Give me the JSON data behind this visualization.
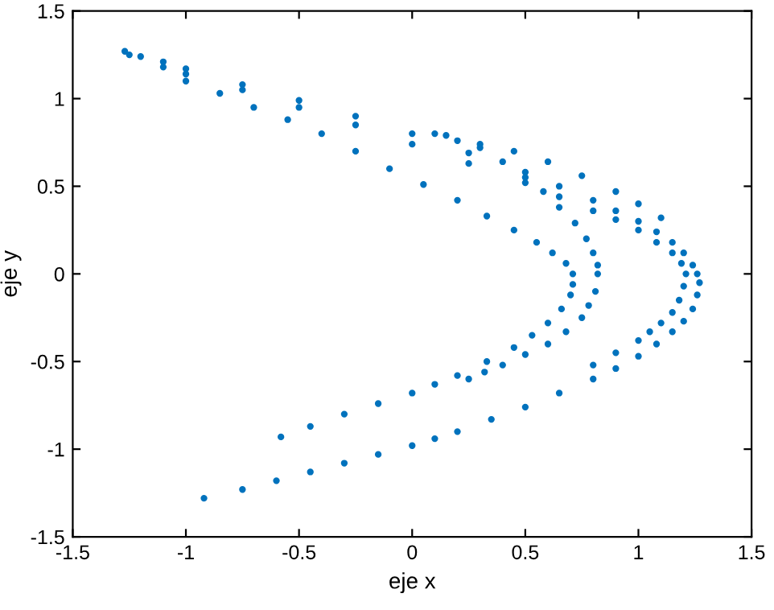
{
  "chart_data": {
    "type": "scatter",
    "xlabel": "eje x",
    "ylabel": "eje y",
    "marker": "circle",
    "grid": false,
    "xlim": [
      -1.5,
      1.5
    ],
    "ylim": [
      -1.5,
      1.5
    ],
    "xticks": [
      -1.5,
      -1,
      -0.5,
      0,
      0.5,
      1,
      1.5
    ],
    "yticks": [
      -1.5,
      -1,
      -0.5,
      0,
      0.5,
      1,
      1.5
    ],
    "series": [
      {
        "color": "#0072bd",
        "x": [
          -1.27,
          -1.1,
          -1.0,
          -0.75,
          -0.5,
          -0.25,
          0,
          0.25,
          0.5,
          0.65,
          0.8,
          0.9,
          1.0,
          1.08,
          1.15,
          1.2,
          1.24,
          1.26,
          1.27,
          1.26,
          1.24,
          1.2,
          1.15,
          1.08,
          1.0,
          0.9,
          0.8,
          0.65,
          0.5,
          0.35,
          0.2,
          0.1,
          0,
          -0.15,
          -0.3,
          -0.45,
          -0.6,
          -0.75,
          -0.92
        ],
        "values": [
          1.27,
          1.21,
          1.17,
          1.08,
          0.99,
          0.9,
          0.8,
          0.69,
          0.58,
          0.5,
          0.42,
          0.36,
          0.3,
          0.24,
          0.18,
          0.12,
          0.05,
          0.0,
          -0.05,
          -0.12,
          -0.2,
          -0.27,
          -0.33,
          -0.4,
          -0.47,
          -0.54,
          -0.6,
          -0.68,
          -0.76,
          -0.83,
          -0.9,
          -0.94,
          -0.98,
          -1.03,
          -1.08,
          -1.13,
          -1.18,
          -1.23,
          -1.28
        ]
      },
      {
        "color": "#0072bd",
        "x": [
          -1.25,
          -1.1,
          -1.0,
          -0.75,
          -0.5,
          -0.25,
          0,
          0.25,
          0.5,
          0.65,
          0.8,
          0.9,
          1.0,
          1.08,
          1.15,
          1.19,
          1.21,
          1.2,
          1.18,
          1.15,
          1.1,
          1.05,
          1.0,
          0.9,
          0.8
        ],
        "values": [
          1.25,
          1.18,
          1.14,
          1.05,
          0.95,
          0.85,
          0.74,
          0.63,
          0.52,
          0.44,
          0.36,
          0.31,
          0.25,
          0.18,
          0.12,
          0.06,
          0.0,
          -0.07,
          -0.15,
          -0.22,
          -0.28,
          -0.33,
          -0.38,
          -0.45,
          -0.52
        ]
      },
      {
        "color": "#0072bd",
        "x": [
          -1.2,
          -1.0,
          -0.85,
          -0.7,
          -0.55,
          -0.4,
          -0.25,
          -0.1,
          0.05,
          0.2,
          0.33,
          0.45,
          0.55,
          0.62,
          0.68,
          0.71,
          0.71,
          0.7,
          0.66,
          0.6,
          0.53,
          0.45,
          0.33,
          0.2,
          0.1,
          0,
          -0.15,
          -0.3,
          -0.45,
          -0.58
        ],
        "values": [
          1.24,
          1.1,
          1.03,
          0.95,
          0.88,
          0.8,
          0.7,
          0.6,
          0.51,
          0.42,
          0.33,
          0.25,
          0.18,
          0.12,
          0.06,
          0.0,
          -0.06,
          -0.12,
          -0.2,
          -0.28,
          -0.35,
          -0.42,
          -0.5,
          -0.58,
          -0.63,
          -0.68,
          -0.74,
          -0.8,
          -0.87,
          -0.93
        ]
      },
      {
        "color": "#0072bd",
        "x": [
          0.1,
          0.2,
          0.3,
          0.4,
          0.5,
          0.58,
          0.65,
          0.72,
          0.77,
          0.8,
          0.82,
          0.82,
          0.81,
          0.78,
          0.75,
          0.68,
          0.6,
          0.5,
          0.4,
          0.32,
          0.25
        ],
        "values": [
          0.8,
          0.76,
          0.72,
          0.64,
          0.55,
          0.47,
          0.38,
          0.29,
          0.2,
          0.12,
          0.05,
          0.0,
          -0.1,
          -0.18,
          -0.25,
          -0.33,
          -0.4,
          -0.46,
          -0.52,
          -0.56,
          -0.6
        ]
      },
      {
        "color": "#0072bd",
        "x": [
          0.15,
          0.3,
          0.45,
          0.6,
          0.75,
          0.9,
          1.0,
          1.1
        ],
        "values": [
          0.79,
          0.74,
          0.7,
          0.64,
          0.56,
          0.47,
          0.4,
          0.32
        ]
      }
    ]
  }
}
